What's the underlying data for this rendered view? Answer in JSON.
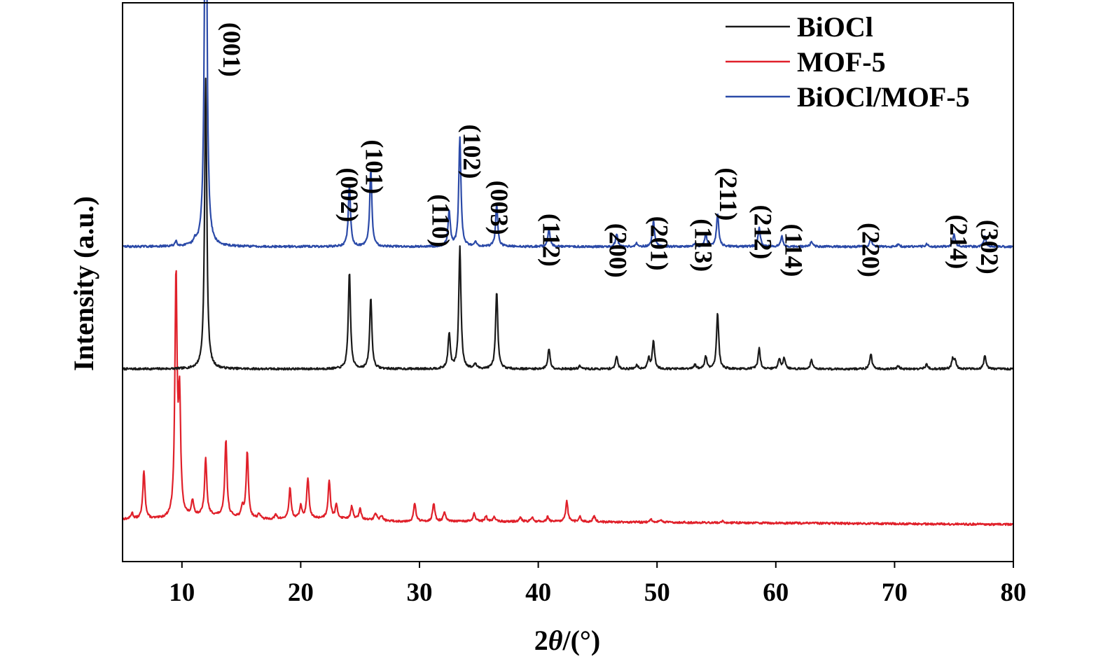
{
  "chart_data": {
    "type": "line",
    "xlabel_prefix": "2",
    "xlabel_symbol": "θ",
    "xlabel_suffix": "/(°)",
    "ylabel": "Intensity (a.u.)",
    "xlim": [
      5,
      80
    ],
    "xticks": [
      10,
      20,
      30,
      40,
      50,
      60,
      70,
      80
    ],
    "legend_position": "top-right",
    "grid": false,
    "series": [
      {
        "name": "BiOCl",
        "color": "#1a1a1a",
        "offset": 0.305,
        "noise_seed": 7,
        "baseline_points": [
          [
            5,
            0.0
          ],
          [
            80,
            0.0
          ]
        ],
        "peaks": [
          [
            12.0,
            0.57
          ],
          [
            24.1,
            0.19
          ],
          [
            25.9,
            0.14
          ],
          [
            32.5,
            0.07
          ],
          [
            33.4,
            0.24
          ],
          [
            34.7,
            0.01
          ],
          [
            36.5,
            0.15
          ],
          [
            40.9,
            0.04
          ],
          [
            43.5,
            0.006
          ],
          [
            46.6,
            0.025
          ],
          [
            48.3,
            0.008
          ],
          [
            49.3,
            0.02
          ],
          [
            49.7,
            0.055
          ],
          [
            53.2,
            0.008
          ],
          [
            54.1,
            0.025
          ],
          [
            55.1,
            0.11
          ],
          [
            58.6,
            0.04
          ],
          [
            60.3,
            0.02
          ],
          [
            60.7,
            0.022
          ],
          [
            63.0,
            0.018
          ],
          [
            68.0,
            0.03
          ],
          [
            70.3,
            0.006
          ],
          [
            72.7,
            0.01
          ],
          [
            74.9,
            0.02
          ],
          [
            75.1,
            0.015
          ],
          [
            77.6,
            0.027
          ]
        ]
      },
      {
        "name": "MOF-5",
        "color": "#e0202a",
        "offset": 0.0,
        "noise_seed": 13,
        "baseline_points": [
          [
            5,
            0.01
          ],
          [
            9,
            0.01
          ],
          [
            12,
            0.018
          ],
          [
            17,
            0.01
          ],
          [
            23,
            0.012
          ],
          [
            28,
            0.006
          ],
          [
            35,
            0.006
          ],
          [
            45,
            0.005
          ],
          [
            80,
            0.0
          ]
        ],
        "peaks": [
          [
            5.8,
            0.012
          ],
          [
            6.8,
            0.095
          ],
          [
            9.5,
            0.47
          ],
          [
            9.8,
            0.22
          ],
          [
            10.9,
            0.03
          ],
          [
            12.0,
            0.11
          ],
          [
            13.7,
            0.15
          ],
          [
            15.1,
            0.02
          ],
          [
            15.5,
            0.13
          ],
          [
            16.5,
            0.01
          ],
          [
            17.9,
            0.008
          ],
          [
            19.1,
            0.06
          ],
          [
            20.0,
            0.025
          ],
          [
            20.6,
            0.08
          ],
          [
            22.4,
            0.075
          ],
          [
            23.0,
            0.025
          ],
          [
            24.3,
            0.025
          ],
          [
            25.0,
            0.02
          ],
          [
            26.3,
            0.015
          ],
          [
            26.8,
            0.01
          ],
          [
            29.6,
            0.035
          ],
          [
            31.2,
            0.035
          ],
          [
            32.1,
            0.018
          ],
          [
            34.6,
            0.015
          ],
          [
            35.6,
            0.01
          ],
          [
            36.3,
            0.01
          ],
          [
            38.5,
            0.008
          ],
          [
            39.5,
            0.008
          ],
          [
            40.8,
            0.01
          ],
          [
            42.4,
            0.04
          ],
          [
            43.5,
            0.01
          ],
          [
            44.7,
            0.012
          ],
          [
            49.5,
            0.005
          ],
          [
            50.3,
            0.005
          ],
          [
            55.5,
            0.003
          ]
        ]
      },
      {
        "name": "BiOCl/MOF-5",
        "color": "#2b4aa8",
        "offset": 0.545,
        "noise_seed": 29,
        "baseline_points": [
          [
            5,
            0.0
          ],
          [
            80,
            0.0
          ]
        ],
        "peaks": [
          [
            9.5,
            0.01
          ],
          [
            11.1,
            0.008
          ],
          [
            12.0,
            0.97
          ],
          [
            24.1,
            0.12
          ],
          [
            25.9,
            0.15
          ],
          [
            32.5,
            0.07
          ],
          [
            33.4,
            0.215
          ],
          [
            34.7,
            0.01
          ],
          [
            36.5,
            0.08
          ],
          [
            40.9,
            0.035
          ],
          [
            46.6,
            0.025
          ],
          [
            48.3,
            0.006
          ],
          [
            49.7,
            0.05
          ],
          [
            53.2,
            0.007
          ],
          [
            54.1,
            0.025
          ],
          [
            55.1,
            0.065
          ],
          [
            58.6,
            0.038
          ],
          [
            60.5,
            0.02
          ],
          [
            63.0,
            0.01
          ],
          [
            68.0,
            0.015
          ],
          [
            70.3,
            0.004
          ],
          [
            72.7,
            0.005
          ],
          [
            75.0,
            0.025
          ],
          [
            77.6,
            0.02
          ]
        ]
      }
    ],
    "annotations": [
      {
        "text": "(001)",
        "x": 13.5,
        "y": 0.985
      },
      {
        "text": "(002)",
        "x": 23.4,
        "y": 0.7
      },
      {
        "text": "(101)",
        "x": 25.5,
        "y": 0.755
      },
      {
        "text": "(110)",
        "x": 31.1,
        "y": 0.648
      },
      {
        "text": "(102)",
        "x": 33.7,
        "y": 0.785
      },
      {
        "text": "(003)",
        "x": 36.0,
        "y": 0.675
      },
      {
        "text": "(112)",
        "x": 40.4,
        "y": 0.61
      },
      {
        "text": "(200)",
        "x": 46.0,
        "y": 0.591
      },
      {
        "text": "(201)",
        "x": 49.5,
        "y": 0.605
      },
      {
        "text": "(113)",
        "x": 53.2,
        "y": 0.6
      },
      {
        "text": "(211)",
        "x": 55.3,
        "y": 0.7
      },
      {
        "text": "(212)",
        "x": 58.2,
        "y": 0.627
      },
      {
        "text": "(114)",
        "x": 60.8,
        "y": 0.59
      },
      {
        "text": "(220)",
        "x": 67.3,
        "y": 0.592
      },
      {
        "text": "(214)",
        "x": 74.7,
        "y": 0.608
      },
      {
        "text": "(302)",
        "x": 77.3,
        "y": 0.598
      }
    ]
  }
}
